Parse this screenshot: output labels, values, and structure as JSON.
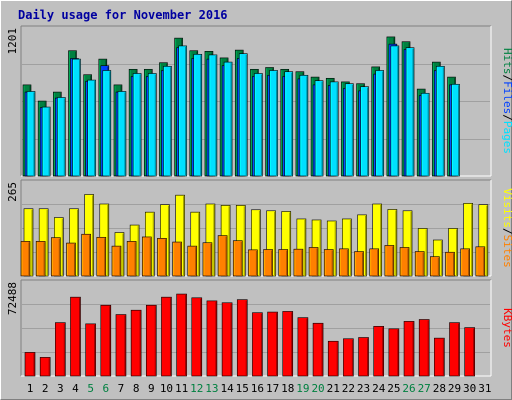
{
  "page": {
    "title": "Daily usage for November 2016"
  },
  "colors": {
    "background": "#c0c0c0",
    "plot": "#c0c0c0",
    "title": "#0000a0",
    "hits": "#008040",
    "files": "#0040ff",
    "pages": "#00e0ff",
    "visits": "#ffff00",
    "sites": "#ff8000",
    "kbytes": "#ff0000",
    "weekend_label": "#008040",
    "day_label": "#000000"
  },
  "chart_data": [
    {
      "type": "bar",
      "name": "hits-files-pages",
      "categories": [
        "1",
        "2",
        "3",
        "4",
        "5",
        "6",
        "7",
        "8",
        "9",
        "10",
        "11",
        "12",
        "13",
        "14",
        "15",
        "16",
        "17",
        "18",
        "19",
        "20",
        "21",
        "22",
        "23",
        "24",
        "25",
        "26",
        "27",
        "28",
        "29",
        "30",
        "31"
      ],
      "y_max_label": "1201",
      "ylim": [
        0,
        1201
      ],
      "labels": [
        "Pages",
        "Files",
        "Hits"
      ],
      "separator": "/",
      "series": [
        {
          "name": "Hits",
          "values": [
            760,
            625,
            700,
            1045,
            845,
            975,
            760,
            890,
            890,
            945,
            1150,
            1045,
            1040,
            985,
            1050,
            890,
            905,
            890,
            870,
            825,
            815,
            785,
            770,
            910,
            1160,
            1120,
            725,
            950,
            825,
            null,
            null
          ]
        },
        {
          "name": "Files",
          "values": [
            700,
            570,
            650,
            980,
            790,
            920,
            700,
            830,
            830,
            880,
            1070,
            980,
            975,
            920,
            980,
            830,
            840,
            830,
            810,
            760,
            755,
            730,
            710,
            850,
            1100,
            1055,
            670,
            880,
            760,
            null,
            null
          ]
        },
        {
          "name": "Pages",
          "values": [
            705,
            575,
            655,
            975,
            800,
            880,
            705,
            855,
            855,
            915,
            1085,
            1015,
            1010,
            950,
            1020,
            855,
            880,
            870,
            840,
            795,
            785,
            770,
            745,
            880,
            1085,
            1070,
            690,
            915,
            765,
            null,
            null
          ]
        }
      ]
    },
    {
      "type": "bar",
      "name": "visits-sites",
      "categories": [
        "1",
        "2",
        "3",
        "4",
        "5",
        "6",
        "7",
        "8",
        "9",
        "10",
        "11",
        "12",
        "13",
        "14",
        "15",
        "16",
        "17",
        "18",
        "19",
        "20",
        "21",
        "22",
        "23",
        "24",
        "25",
        "26",
        "27",
        "28",
        "29",
        "30",
        "31"
      ],
      "y_max_label": "265",
      "ylim": [
        0,
        265
      ],
      "labels": [
        "Sites",
        "Visits"
      ],
      "separator": "/",
      "series": [
        {
          "name": "Visits",
          "values": [
            198,
            198,
            172,
            198,
            240,
            212,
            128,
            150,
            188,
            210,
            238,
            188,
            212,
            208,
            208,
            195,
            192,
            190,
            168,
            165,
            162,
            168,
            180,
            212,
            196,
            192,
            140,
            106,
            140,
            214,
            210
          ]
        },
        {
          "name": "Sites",
          "values": [
            102,
            102,
            113,
            97,
            123,
            114,
            88,
            102,
            115,
            111,
            100,
            88,
            98,
            119,
            104,
            77,
            78,
            78,
            79,
            84,
            78,
            80,
            72,
            80,
            90,
            84,
            72,
            57,
            70,
            80,
            86
          ]
        }
      ]
    },
    {
      "type": "bar",
      "name": "kbytes",
      "categories": [
        "1",
        "2",
        "3",
        "4",
        "5",
        "6",
        "7",
        "8",
        "9",
        "10",
        "11",
        "12",
        "13",
        "14",
        "15",
        "16",
        "17",
        "18",
        "19",
        "20",
        "21",
        "22",
        "23",
        "24",
        "25",
        "26",
        "27",
        "28",
        "29",
        "30",
        "31"
      ],
      "y_max_label": "72488",
      "ylim": [
        0,
        72488
      ],
      "labels": [
        "KBytes"
      ],
      "series": [
        {
          "name": "KBytes",
          "values": [
            19000,
            15000,
            43000,
            63500,
            42000,
            57000,
            49500,
            53000,
            57000,
            63500,
            66000,
            63000,
            60500,
            59000,
            61500,
            51000,
            51500,
            52000,
            47000,
            42500,
            28000,
            30000,
            31000,
            40000,
            38000,
            44000,
            45500,
            30500,
            43000,
            39000,
            null
          ]
        }
      ]
    }
  ],
  "x_axis": {
    "labels": [
      "1",
      "2",
      "3",
      "4",
      "5",
      "6",
      "7",
      "8",
      "9",
      "10",
      "11",
      "12",
      "13",
      "14",
      "15",
      "16",
      "17",
      "18",
      "19",
      "20",
      "21",
      "22",
      "23",
      "24",
      "25",
      "26",
      "27",
      "28",
      "29",
      "30",
      "31"
    ],
    "weekend_days": [
      "5",
      "6",
      "12",
      "13",
      "19",
      "20",
      "26",
      "27"
    ]
  }
}
